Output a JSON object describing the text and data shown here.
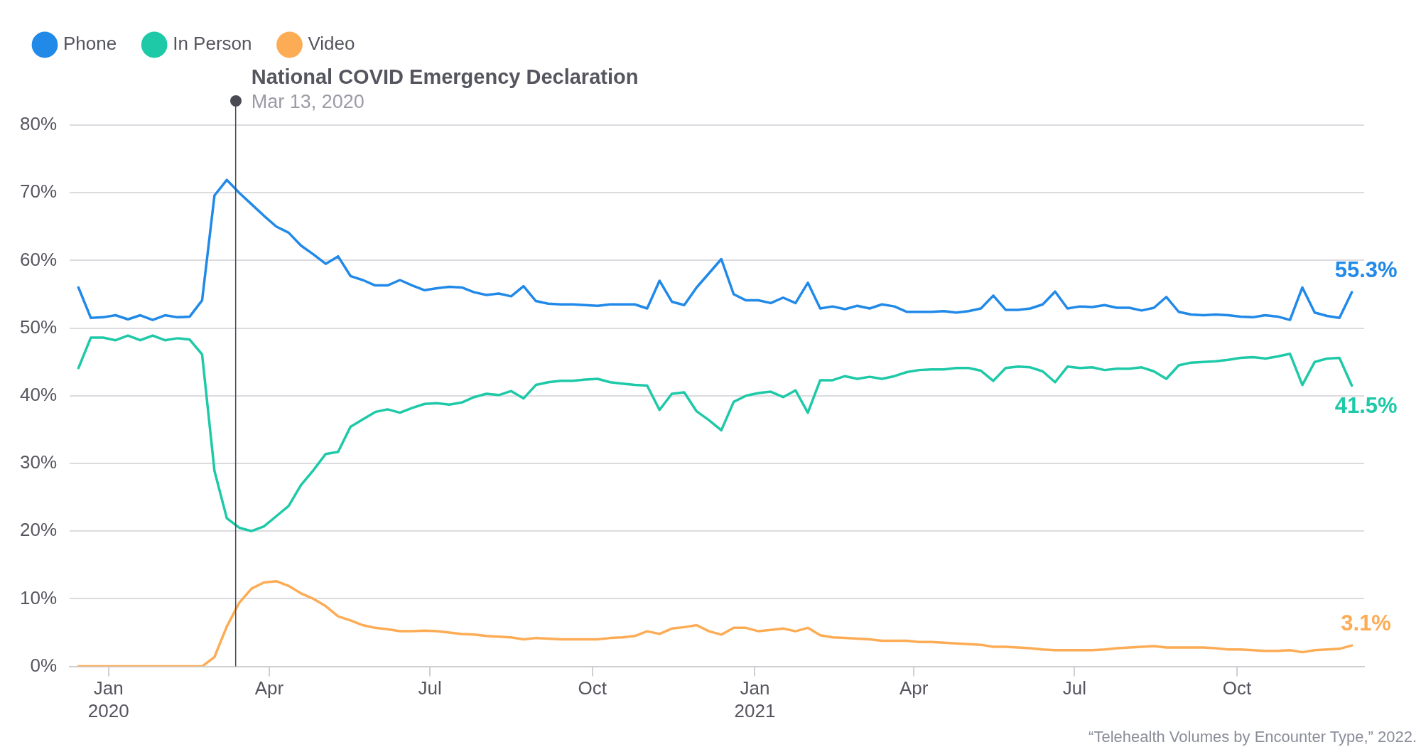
{
  "chart_data": {
    "type": "line",
    "x": [
      "2019-12-15",
      "2019-12-22",
      "2019-12-29",
      "2020-01-05",
      "2020-01-12",
      "2020-01-19",
      "2020-01-26",
      "2020-02-02",
      "2020-02-09",
      "2020-02-16",
      "2020-02-23",
      "2020-03-01",
      "2020-03-08",
      "2020-03-15",
      "2020-03-22",
      "2020-03-29",
      "2020-04-05",
      "2020-04-12",
      "2020-04-19",
      "2020-04-26",
      "2020-05-03",
      "2020-05-10",
      "2020-05-17",
      "2020-05-24",
      "2020-05-31",
      "2020-06-07",
      "2020-06-14",
      "2020-06-21",
      "2020-06-28",
      "2020-07-05",
      "2020-07-12",
      "2020-07-19",
      "2020-07-26",
      "2020-08-02",
      "2020-08-09",
      "2020-08-16",
      "2020-08-23",
      "2020-08-30",
      "2020-09-06",
      "2020-09-13",
      "2020-09-20",
      "2020-09-27",
      "2020-10-04",
      "2020-10-11",
      "2020-10-18",
      "2020-10-25",
      "2020-11-01",
      "2020-11-08",
      "2020-11-15",
      "2020-11-22",
      "2020-11-29",
      "2020-12-06",
      "2020-12-13",
      "2020-12-20",
      "2020-12-27",
      "2021-01-03",
      "2021-01-10",
      "2021-01-17",
      "2021-01-24",
      "2021-01-31",
      "2021-02-07",
      "2021-02-14",
      "2021-02-21",
      "2021-02-28",
      "2021-03-07",
      "2021-03-14",
      "2021-03-21",
      "2021-03-28",
      "2021-04-04",
      "2021-04-11",
      "2021-04-18",
      "2021-04-25",
      "2021-05-02",
      "2021-05-09",
      "2021-05-16",
      "2021-05-23",
      "2021-05-30",
      "2021-06-06",
      "2021-06-13",
      "2021-06-20",
      "2021-06-27",
      "2021-07-04",
      "2021-07-11",
      "2021-07-18",
      "2021-07-25",
      "2021-08-01",
      "2021-08-08",
      "2021-08-15",
      "2021-08-22",
      "2021-08-29",
      "2021-09-05",
      "2021-09-12",
      "2021-09-19",
      "2021-09-26",
      "2021-10-03",
      "2021-10-10",
      "2021-10-17",
      "2021-10-24",
      "2021-10-31",
      "2021-11-07",
      "2021-11-14",
      "2021-11-21",
      "2021-11-28",
      "2021-12-05"
    ],
    "series": [
      {
        "name": "Phone",
        "color": "#2189e8",
        "values": [
          56.0,
          51.5,
          51.6,
          51.9,
          51.3,
          51.9,
          51.2,
          51.9,
          51.6,
          51.7,
          54.1,
          69.6,
          71.9,
          70.0,
          68.3,
          66.6,
          65.0,
          64.1,
          62.2,
          60.9,
          59.5,
          60.6,
          57.7,
          57.1,
          56.3,
          56.3,
          57.1,
          56.3,
          55.6,
          55.9,
          56.1,
          56.0,
          55.3,
          54.9,
          55.1,
          54.7,
          56.2,
          54.0,
          53.6,
          53.5,
          53.5,
          53.4,
          53.3,
          53.5,
          53.5,
          53.5,
          52.9,
          57.0,
          53.9,
          53.4,
          56.0,
          58.1,
          60.2,
          55.0,
          54.1,
          54.1,
          53.7,
          54.5,
          53.7,
          56.7,
          52.9,
          53.2,
          52.8,
          53.3,
          52.9,
          53.5,
          53.2,
          52.4,
          52.4,
          52.4,
          52.5,
          52.3,
          52.5,
          52.9,
          54.8,
          52.7,
          52.7,
          52.9,
          53.5,
          55.4,
          52.9,
          53.2,
          53.1,
          53.4,
          53.0,
          53.0,
          52.6,
          53.0,
          54.6,
          52.4,
          52.0,
          51.9,
          52.0,
          51.9,
          51.7,
          51.6,
          51.9,
          51.7,
          51.2,
          56.0,
          52.3,
          51.8,
          51.5,
          55.3
        ],
        "value_labels": [
          null,
          null,
          null,
          null,
          null,
          null,
          null,
          null,
          null,
          null,
          null,
          null,
          null,
          null,
          null,
          null,
          null,
          null,
          null,
          null,
          null,
          null,
          null,
          null,
          null,
          null,
          null,
          null,
          null,
          null,
          null,
          null,
          null,
          null,
          null,
          null,
          null,
          null,
          null,
          null,
          null,
          null,
          null,
          null,
          null,
          null,
          null,
          null,
          null,
          null,
          null,
          null,
          null,
          null,
          null,
          null,
          null,
          null,
          null,
          null,
          null,
          null,
          null,
          null,
          null,
          null,
          null,
          null,
          null,
          null,
          null,
          null,
          null,
          null,
          null,
          null,
          null,
          null,
          null,
          null,
          null,
          null,
          null,
          null,
          null,
          null,
          null,
          null,
          null,
          null,
          null,
          null,
          null,
          null,
          null,
          null,
          null,
          null,
          null,
          null,
          null,
          null,
          null,
          "55.3%"
        ]
      },
      {
        "name": "In Person",
        "color": "#1ec9a8",
        "values": [
          44.1,
          48.6,
          48.6,
          48.2,
          48.9,
          48.2,
          48.9,
          48.2,
          48.5,
          48.3,
          46.1,
          28.9,
          21.9,
          20.5,
          20.0,
          20.7,
          22.2,
          23.7,
          26.8,
          29.0,
          31.4,
          31.7,
          35.4,
          36.5,
          37.6,
          38.0,
          37.5,
          38.2,
          38.8,
          38.9,
          38.7,
          39.0,
          39.8,
          40.3,
          40.1,
          40.7,
          39.6,
          41.6,
          42.0,
          42.2,
          42.2,
          42.4,
          42.5,
          42.0,
          41.8,
          41.6,
          41.5,
          37.9,
          40.3,
          40.5,
          37.7,
          36.4,
          34.9,
          39.1,
          40.0,
          40.4,
          40.6,
          39.8,
          40.8,
          37.5,
          42.3,
          42.3,
          42.9,
          42.5,
          42.8,
          42.5,
          42.9,
          43.5,
          43.8,
          43.9,
          43.9,
          44.1,
          44.1,
          43.7,
          42.2,
          44.1,
          44.3,
          44.2,
          43.6,
          42.0,
          44.3,
          44.1,
          44.2,
          43.8,
          44.0,
          44.0,
          44.2,
          43.6,
          42.5,
          44.5,
          44.9,
          45.0,
          45.1,
          45.3,
          45.6,
          45.7,
          45.5,
          45.8,
          46.2,
          41.6,
          45.0,
          45.5,
          45.6,
          41.5
        ],
        "value_labels": [
          null,
          null,
          null,
          null,
          null,
          null,
          null,
          null,
          null,
          null,
          null,
          null,
          null,
          null,
          null,
          null,
          null,
          null,
          null,
          null,
          null,
          null,
          null,
          null,
          null,
          null,
          null,
          null,
          null,
          null,
          null,
          null,
          null,
          null,
          null,
          null,
          null,
          null,
          null,
          null,
          null,
          null,
          null,
          null,
          null,
          null,
          null,
          null,
          null,
          null,
          null,
          null,
          null,
          null,
          null,
          null,
          null,
          null,
          null,
          null,
          null,
          null,
          null,
          null,
          null,
          null,
          null,
          null,
          null,
          null,
          null,
          null,
          null,
          null,
          null,
          null,
          null,
          null,
          null,
          null,
          null,
          null,
          null,
          null,
          null,
          null,
          null,
          null,
          null,
          null,
          null,
          null,
          null,
          null,
          null,
          null,
          null,
          null,
          null,
          null,
          null,
          null,
          null,
          "41.5%"
        ]
      },
      {
        "name": "Video",
        "color": "#fdac56",
        "values": [
          0,
          0,
          0,
          0,
          0,
          0,
          0,
          0,
          0,
          0,
          0,
          1.4,
          5.9,
          9.4,
          11.5,
          12.4,
          12.6,
          11.9,
          10.8,
          10.0,
          8.9,
          7.4,
          6.8,
          6.1,
          5.7,
          5.5,
          5.2,
          5.2,
          5.3,
          5.2,
          5.0,
          4.8,
          4.7,
          4.5,
          4.4,
          4.3,
          4.0,
          4.2,
          4.1,
          4.0,
          4.0,
          4.0,
          4.0,
          4.2,
          4.3,
          4.5,
          5.2,
          4.8,
          5.6,
          5.8,
          6.1,
          5.2,
          4.7,
          5.7,
          5.7,
          5.2,
          5.4,
          5.6,
          5.2,
          5.7,
          4.6,
          4.3,
          4.2,
          4.1,
          4.0,
          3.8,
          3.8,
          3.8,
          3.6,
          3.6,
          3.5,
          3.4,
          3.3,
          3.2,
          2.9,
          2.9,
          2.8,
          2.7,
          2.5,
          2.4,
          2.4,
          2.4,
          2.4,
          2.5,
          2.7,
          2.8,
          2.9,
          3.0,
          2.8,
          2.8,
          2.8,
          2.8,
          2.7,
          2.5,
          2.5,
          2.4,
          2.3,
          2.3,
          2.4,
          2.1,
          2.4,
          2.5,
          2.6,
          3.1
        ],
        "value_labels": [
          null,
          null,
          null,
          null,
          null,
          null,
          null,
          null,
          null,
          null,
          null,
          null,
          null,
          null,
          null,
          null,
          null,
          null,
          null,
          null,
          null,
          null,
          null,
          null,
          null,
          null,
          null,
          null,
          null,
          null,
          null,
          null,
          null,
          null,
          null,
          null,
          null,
          null,
          null,
          null,
          null,
          null,
          null,
          null,
          null,
          null,
          null,
          null,
          null,
          null,
          null,
          null,
          null,
          null,
          null,
          null,
          null,
          null,
          null,
          null,
          null,
          null,
          null,
          null,
          null,
          null,
          null,
          null,
          null,
          null,
          null,
          null,
          null,
          null,
          null,
          null,
          null,
          null,
          null,
          null,
          null,
          null,
          null,
          null,
          null,
          null,
          null,
          null,
          null,
          null,
          null,
          null,
          null,
          null,
          null,
          null,
          null,
          null,
          null,
          null,
          null,
          null,
          null,
          "3.1%"
        ]
      }
    ],
    "xlim": [
      "2019-12-10",
      "2021-12-12"
    ],
    "xticks": [
      {
        "value": "2020-01-01",
        "label": "Jan\n2020"
      },
      {
        "value": "2020-04-01",
        "label": "Apr"
      },
      {
        "value": "2020-07-01",
        "label": "Jul"
      },
      {
        "value": "2020-10-01",
        "label": "Oct"
      },
      {
        "value": "2021-01-01",
        "label": "Jan\n2021"
      },
      {
        "value": "2021-04-01",
        "label": "Apr"
      },
      {
        "value": "2021-07-01",
        "label": "Jul"
      },
      {
        "value": "2021-10-01",
        "label": "Oct"
      }
    ],
    "ylim": [
      0,
      80
    ],
    "yticks": [
      {
        "value": 0,
        "label": "0%"
      },
      {
        "value": 10,
        "label": "10%"
      },
      {
        "value": 20,
        "label": "20%"
      },
      {
        "value": 30,
        "label": "30%"
      },
      {
        "value": 40,
        "label": "40%"
      },
      {
        "value": 50,
        "label": "50%"
      },
      {
        "value": 60,
        "label": "60%"
      },
      {
        "value": 70,
        "label": "70%"
      },
      {
        "value": 80,
        "label": "80%"
      }
    ],
    "ref_lines": [
      {
        "axis": "x",
        "value": "2020-03-13",
        "label": "National COVID Emergency Declaration\nMar 13, 2020",
        "color": "#4a4a55"
      }
    ],
    "annotations": [
      "“Telehealth Volumes by Encounter Type,” 2022."
    ],
    "grid": "y",
    "legend": "top left",
    "marker": "none",
    "line_style": "solid"
  }
}
